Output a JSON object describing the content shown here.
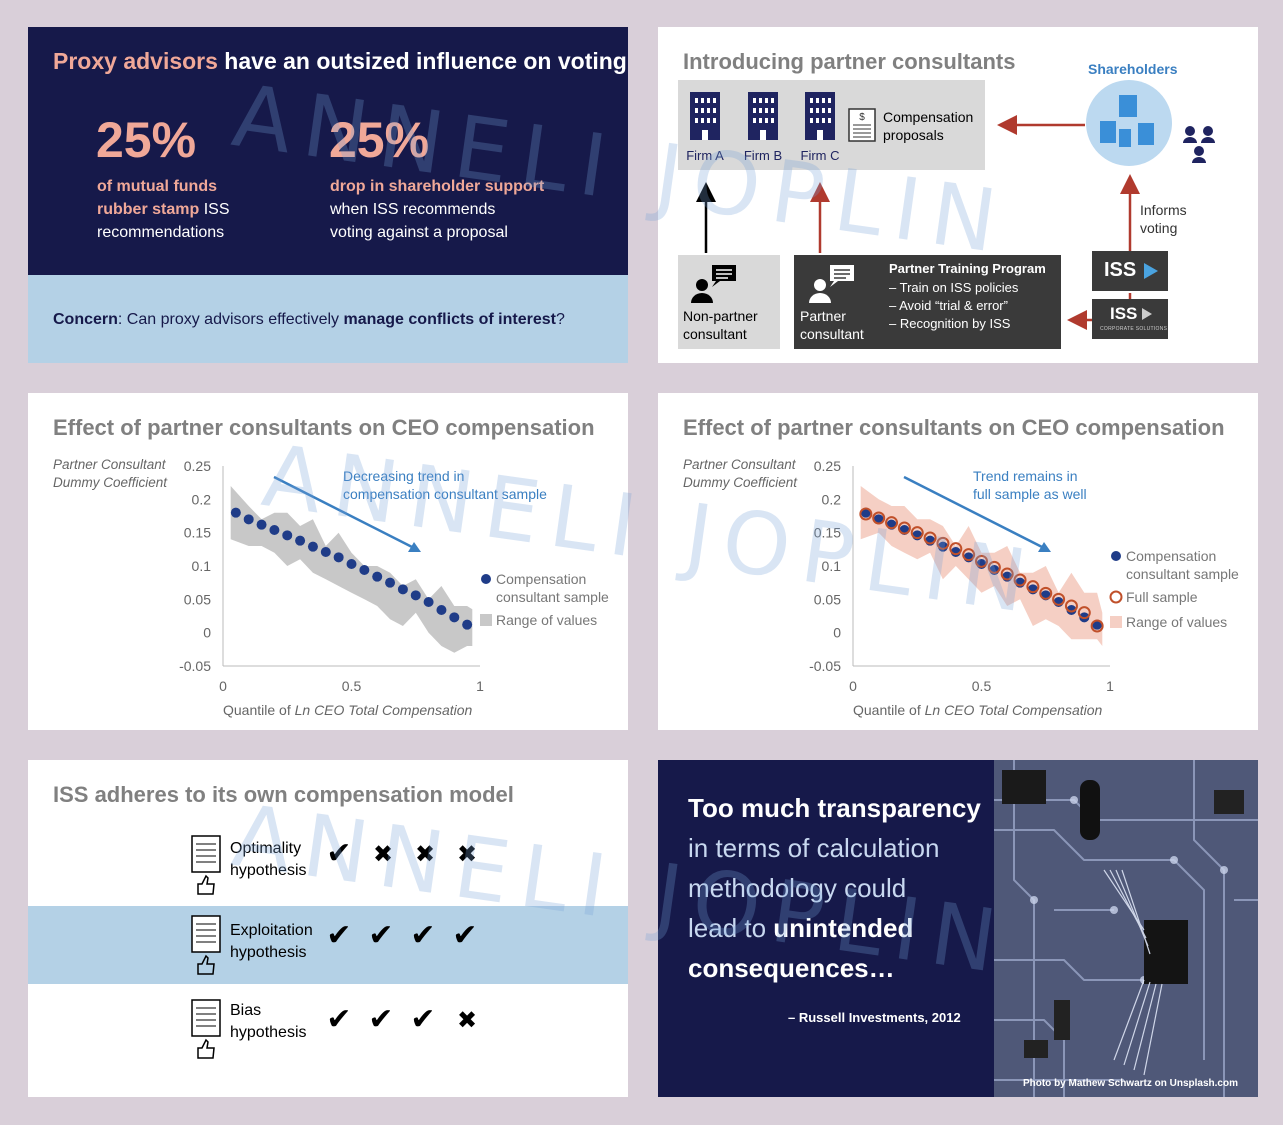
{
  "panel1": {
    "title_highlight": "Proxy advisors",
    "title_rest": " have an outsized influence on voting",
    "stat1": {
      "value": "25%",
      "line1_highlight": "of mutual funds",
      "line2_highlight": "rubber stamp",
      "line2_rest": " ISS",
      "line3": "recommendations"
    },
    "stat2": {
      "value": "25%",
      "line1_highlight": "drop in shareholder support",
      "line2": "when ISS recommends",
      "line3": "voting against a proposal"
    },
    "concern_label": "Concern",
    "concern_text": ": Can proxy advisors effectively ",
    "concern_bold": "manage conflicts of interest",
    "concern_end": "?"
  },
  "panel2": {
    "title": "Introducing partner consultants",
    "firms": [
      "Firm A",
      "Firm B",
      "Firm C"
    ],
    "proposals_line1": "Compensation",
    "proposals_line2": "proposals",
    "shareholders": "Shareholders",
    "informs_line1": "Informs",
    "informs_line2": "voting",
    "nonpartner_line1": "Non-partner",
    "nonpartner_line2": "consultant",
    "partner_line1": "Partner",
    "partner_line2": "consultant",
    "program_title": "Partner Training Program",
    "program_items": [
      "–  Train on ISS policies",
      "–  Avoid “trial & error”",
      "–  Recognition by ISS"
    ],
    "iss_logo": "ISS",
    "iss_cs_logo": "ISS",
    "iss_cs_sub": "CORPORATE SOLUTIONS"
  },
  "chart_data": [
    {
      "type": "scatter",
      "title": "Effect of partner consultants on CEO compensation",
      "ylabel_line1": "Partner Consultant",
      "ylabel_line2": "Dummy Coefficient",
      "xlabel_prefix": "Quantile of ",
      "xlabel_italic": "Ln CEO Total Compensation",
      "x_ticks": [
        "0",
        "0.5",
        "1"
      ],
      "y_ticks": [
        "0.25",
        "0.2",
        "0.15",
        "0.1",
        "0.05",
        "0",
        "-0.05"
      ],
      "xlim": [
        0,
        1
      ],
      "ylim": [
        -0.05,
        0.25
      ],
      "annotation_line1": "Decreasing trend in",
      "annotation_line2": "compensation consultant sample",
      "series": [
        {
          "name": "Compensation consultant sample",
          "color": "#1f3c88",
          "x": [
            0.05,
            0.1,
            0.15,
            0.2,
            0.25,
            0.3,
            0.35,
            0.4,
            0.45,
            0.5,
            0.55,
            0.6,
            0.65,
            0.7,
            0.75,
            0.8,
            0.85,
            0.9,
            0.95
          ],
          "y": [
            0.18,
            0.17,
            0.162,
            0.154,
            0.146,
            0.138,
            0.129,
            0.121,
            0.113,
            0.103,
            0.094,
            0.084,
            0.075,
            0.065,
            0.056,
            0.046,
            0.034,
            0.023,
            0.012
          ]
        }
      ],
      "range": {
        "name": "Range of values",
        "color": "#c8c8c8",
        "x": [
          0.03,
          0.1,
          0.15,
          0.2,
          0.25,
          0.3,
          0.35,
          0.4,
          0.45,
          0.5,
          0.55,
          0.6,
          0.65,
          0.7,
          0.75,
          0.8,
          0.85,
          0.9,
          0.95,
          0.97
        ],
        "upper": [
          0.22,
          0.19,
          0.17,
          0.18,
          0.18,
          0.16,
          0.17,
          0.13,
          0.15,
          0.12,
          0.1,
          0.1,
          0.09,
          0.07,
          0.08,
          0.05,
          0.07,
          0.04,
          0.04,
          0.035
        ],
        "lower": [
          0.14,
          0.13,
          0.13,
          0.12,
          0.1,
          0.11,
          0.09,
          0.08,
          0.07,
          0.06,
          0.05,
          0.04,
          0.02,
          0.01,
          0.03,
          0.0,
          -0.02,
          -0.03,
          -0.02,
          -0.02
        ]
      }
    },
    {
      "type": "scatter",
      "title": "Effect of partner consultants on CEO compensation",
      "ylabel_line1": "Partner Consultant",
      "ylabel_line2": "Dummy Coefficient",
      "xlabel_prefix": "Quantile of ",
      "xlabel_italic": "Ln CEO Total Compensation",
      "x_ticks": [
        "0",
        "0.5",
        "1"
      ],
      "y_ticks": [
        "0.25",
        "0.2",
        "0.15",
        "0.1",
        "0.05",
        "0",
        "-0.05"
      ],
      "xlim": [
        0,
        1
      ],
      "ylim": [
        -0.05,
        0.25
      ],
      "annotation_line1": "Trend remains in",
      "annotation_line2": "full sample as well",
      "series": [
        {
          "name": "Compensation consultant sample",
          "color": "#1f3c88",
          "x": [
            0.05,
            0.1,
            0.15,
            0.2,
            0.25,
            0.3,
            0.35,
            0.4,
            0.45,
            0.5,
            0.55,
            0.6,
            0.65,
            0.7,
            0.75,
            0.8,
            0.85,
            0.9,
            0.95
          ],
          "y": [
            0.18,
            0.17,
            0.162,
            0.154,
            0.146,
            0.138,
            0.129,
            0.121,
            0.113,
            0.103,
            0.094,
            0.084,
            0.075,
            0.065,
            0.056,
            0.046,
            0.034,
            0.023,
            0.012
          ]
        },
        {
          "name": "Full sample",
          "color": "#c0502a",
          "x": [
            0.05,
            0.1,
            0.15,
            0.2,
            0.25,
            0.3,
            0.35,
            0.4,
            0.45,
            0.5,
            0.55,
            0.6,
            0.65,
            0.7,
            0.75,
            0.8,
            0.85,
            0.9,
            0.95
          ],
          "y": [
            0.178,
            0.172,
            0.165,
            0.157,
            0.15,
            0.142,
            0.134,
            0.126,
            0.117,
            0.107,
            0.098,
            0.088,
            0.079,
            0.069,
            0.059,
            0.05,
            0.04,
            0.03,
            0.01
          ]
        }
      ],
      "range": {
        "name": "Range of values",
        "color": "#f5cfc4",
        "x": [
          0.03,
          0.1,
          0.15,
          0.2,
          0.25,
          0.3,
          0.35,
          0.4,
          0.45,
          0.5,
          0.55,
          0.6,
          0.65,
          0.7,
          0.75,
          0.8,
          0.85,
          0.9,
          0.95,
          0.97
        ],
        "upper": [
          0.22,
          0.2,
          0.19,
          0.19,
          0.17,
          0.17,
          0.16,
          0.13,
          0.16,
          0.12,
          0.12,
          0.13,
          0.09,
          0.09,
          0.1,
          0.06,
          0.09,
          0.06,
          0.06,
          0.03
        ],
        "lower": [
          0.14,
          0.15,
          0.13,
          0.12,
          0.11,
          0.12,
          0.08,
          0.1,
          0.08,
          0.06,
          0.07,
          0.04,
          0.05,
          0.01,
          0.02,
          0.01,
          -0.01,
          -0.01,
          -0.01,
          -0.02
        ]
      }
    }
  ],
  "panel5": {
    "title": "ISS adheres to its own compensation model",
    "rows": [
      {
        "line1": "Optimality",
        "line2": "hypothesis",
        "marks": [
          "✔",
          "✖",
          "✖",
          "✖"
        ]
      },
      {
        "line1": "Exploitation",
        "line2": "hypothesis",
        "marks": [
          "✔",
          "✔",
          "✔",
          "✔"
        ]
      },
      {
        "line1": "Bias",
        "line2": "hypothesis",
        "marks": [
          "✔",
          "✔",
          "✔",
          "✖"
        ]
      }
    ]
  },
  "panel6": {
    "quote_bold1": "Too much transparency",
    "quote_line2": "in terms of calculation",
    "quote_line3": "methodology could",
    "quote_line4_pre": "lead to ",
    "quote_line4_bold": "unintended",
    "quote_line5_bold": "consequences…",
    "attribution": "– Russell Investments, 2012",
    "photo_credit": "Photo by Mathew Schwartz on Unsplash.com"
  },
  "watermark": "ANNELI JOPLIN",
  "colors": {
    "navy": "#16194a",
    "pink": "#f0a898",
    "lightblue": "#b4d1e6",
    "arrow_red": "#b03a2e",
    "arrow_blue": "#3a7fc1"
  }
}
